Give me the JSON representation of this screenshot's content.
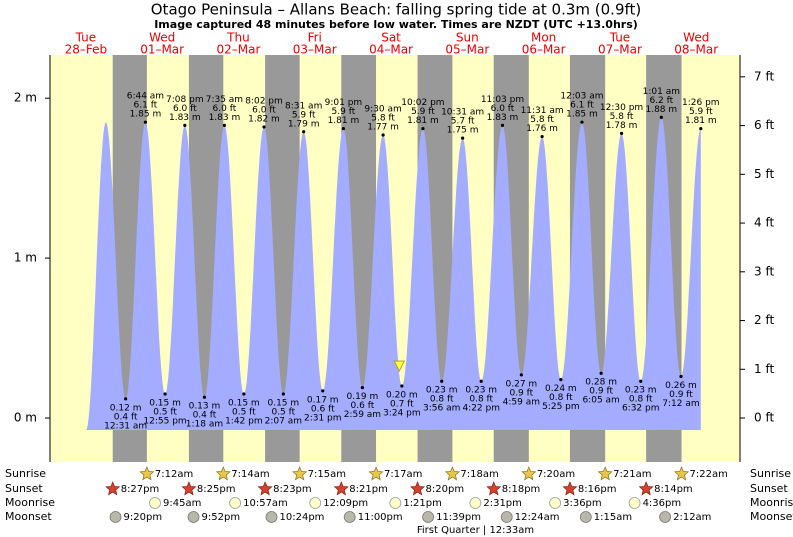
{
  "chart_data": {
    "type": "tide",
    "title": "Otago Peninsula – Allans Beach: falling  spring tide at 0.3m (0.9ft)",
    "subtitle": "Image captured 48 minutes before low water. Times are NZDT (UTC +13.0hrs)",
    "ylim": [
      -0.275,
      2.27
    ],
    "yticks": [
      {
        "value": 0,
        "label": "0 m"
      },
      {
        "value": 1,
        "label": "1 m"
      },
      {
        "value": 2,
        "label": "2 m"
      }
    ],
    "y2lim": [
      -0.902,
      7.448
    ],
    "y2ticks": [
      {
        "value": 0,
        "label": "0 ft"
      },
      {
        "value": 1,
        "label": "1 ft"
      },
      {
        "value": 2,
        "label": "2 ft"
      },
      {
        "value": 3,
        "label": "3 ft"
      },
      {
        "value": 4,
        "label": "4 ft"
      },
      {
        "value": 5,
        "label": "5 ft"
      },
      {
        "value": 6,
        "label": "6 ft"
      },
      {
        "value": 7,
        "label": "7 ft"
      }
    ],
    "row_labels": {
      "sunrise": "Sunrise",
      "sunset": "Sunset",
      "moonrise": "Moonrise",
      "moonset": "Moonset"
    },
    "colors": {
      "day": "#ffffc4",
      "night": "#999999",
      "water": "#a3acff",
      "date": "#ee0000"
    },
    "days": [
      {
        "name": "Tue",
        "date": "28–Feb",
        "tides": [],
        "sunset": "8:27pm",
        "moonset": "9:20pm"
      },
      {
        "name": "Wed",
        "date": "01–Mar",
        "tides": [
          {
            "time": "12:31 am",
            "m": 0.12,
            "m_label": "0.12 m",
            "ft": 0.4,
            "ft_label": "0.4 ft"
          },
          {
            "time": "6:44 am",
            "m": 1.85,
            "m_label": "1.85 m",
            "ft": 6.1,
            "ft_label": "6.1 ft"
          },
          {
            "time": "12:55 pm",
            "m": 0.15,
            "m_label": "0.15 m",
            "ft": 0.5,
            "ft_label": "0.5 ft"
          },
          {
            "time": "7:08 pm",
            "m": 1.83,
            "m_label": "1.83 m",
            "ft": 6.0,
            "ft_label": "6.0 ft"
          }
        ],
        "sunrise": "7:12am",
        "sunset": "8:25pm",
        "moonrise": "9:45am",
        "moonset": "9:52pm"
      },
      {
        "name": "Thu",
        "date": "02–Mar",
        "tides": [
          {
            "time": "1:18 am",
            "m": 0.13,
            "m_label": "0.13 m",
            "ft": 0.4,
            "ft_label": "0.4 ft"
          },
          {
            "time": "7:35 am",
            "m": 1.83,
            "m_label": "1.83 m",
            "ft": 6.0,
            "ft_label": "6.0 ft"
          },
          {
            "time": "1:42 pm",
            "m": 0.15,
            "m_label": "0.15 m",
            "ft": 0.5,
            "ft_label": "0.5 ft"
          },
          {
            "time": "8:02 pm",
            "m": 1.82,
            "m_label": "1.82 m",
            "ft": 6.0,
            "ft_label": "6.0 ft"
          }
        ],
        "sunrise": "7:14am",
        "sunset": "8:23pm",
        "moonrise": "10:57am",
        "moonset": "10:24pm"
      },
      {
        "name": "Fri",
        "date": "03–Mar",
        "tides": [
          {
            "time": "2:07 am",
            "m": 0.15,
            "m_label": "0.15 m",
            "ft": 0.5,
            "ft_label": "0.5 ft"
          },
          {
            "time": "8:31 am",
            "m": 1.79,
            "m_label": "1.79 m",
            "ft": 5.9,
            "ft_label": "5.9 ft"
          },
          {
            "time": "2:31 pm",
            "m": 0.17,
            "m_label": "0.17 m",
            "ft": 0.6,
            "ft_label": "0.6 ft"
          },
          {
            "time": "9:01 pm",
            "m": 1.81,
            "m_label": "1.81 m",
            "ft": 5.9,
            "ft_label": "5.9 ft"
          }
        ],
        "sunrise": "7:15am",
        "sunset": "8:21pm",
        "moonrise": "12:09pm",
        "moonset": "11:00pm"
      },
      {
        "name": "Sat",
        "date": "04–Mar",
        "tides": [
          {
            "time": "2:59 am",
            "m": 0.19,
            "m_label": "0.19 m",
            "ft": 0.6,
            "ft_label": "0.6 ft"
          },
          {
            "time": "9:30 am",
            "m": 1.77,
            "m_label": "1.77 m",
            "ft": 5.8,
            "ft_label": "5.8 ft"
          },
          {
            "time": "3:24 pm",
            "m": 0.2,
            "m_label": "0.20 m",
            "ft": 0.7,
            "ft_label": "0.7 ft",
            "now": {
              "level": 0.3,
              "minutes_before": 48
            }
          },
          {
            "time": "10:02 pm",
            "m": 1.81,
            "m_label": "1.81 m",
            "ft": 5.9,
            "ft_label": "5.9 ft"
          }
        ],
        "sunrise": "7:17am",
        "sunset": "8:20pm",
        "moonrise": "1:21pm",
        "moonset": "11:39pm"
      },
      {
        "name": "Sun",
        "date": "05–Mar",
        "tides": [
          {
            "time": "3:56 am",
            "m": 0.23,
            "m_label": "0.23 m",
            "ft": 0.8,
            "ft_label": "0.8 ft"
          },
          {
            "time": "10:31 am",
            "m": 1.75,
            "m_label": "1.75 m",
            "ft": 5.7,
            "ft_label": "5.7 ft"
          },
          {
            "time": "4:22 pm",
            "m": 0.23,
            "m_label": "0.23 m",
            "ft": 0.8,
            "ft_label": "0.8 ft"
          },
          {
            "time": "11:03 pm",
            "m": 1.83,
            "m_label": "1.83 m",
            "ft": 6.0,
            "ft_label": "6.0 ft"
          }
        ],
        "sunrise": "7:18am",
        "sunset": "8:18pm",
        "moonrise": "2:31pm"
      },
      {
        "name": "Mon",
        "date": "06–Mar",
        "tides": [
          {
            "time": "4:59 am",
            "m": 0.27,
            "m_label": "0.27 m",
            "ft": 0.9,
            "ft_label": "0.9 ft"
          },
          {
            "time": "11:31 am",
            "m": 1.76,
            "m_label": "1.76 m",
            "ft": 5.8,
            "ft_label": "5.8 ft"
          },
          {
            "time": "5:25 pm",
            "m": 0.24,
            "m_label": "0.24 m",
            "ft": 0.8,
            "ft_label": "0.8 ft"
          }
        ],
        "sunrise": "7:20am",
        "sunset": "8:16pm",
        "moonrise": "3:36pm",
        "moonset": "12:24am",
        "moon_phase": "First Quarter | 12:33am"
      },
      {
        "name": "Tue",
        "date": "07–Mar",
        "tides": [
          {
            "time": "12:03 am",
            "m": 1.85,
            "m_label": "1.85 m",
            "ft": 6.1,
            "ft_label": "6.1 ft"
          },
          {
            "time": "6:05 am",
            "m": 0.28,
            "m_label": "0.28 m",
            "ft": 0.9,
            "ft_label": "0.9 ft"
          },
          {
            "time": "12:30 pm",
            "m": 1.78,
            "m_label": "1.78 m",
            "ft": 5.8,
            "ft_label": "5.8 ft"
          },
          {
            "time": "6:32 pm",
            "m": 0.23,
            "m_label": "0.23 m",
            "ft": 0.8,
            "ft_label": "0.8 ft"
          }
        ],
        "sunrise": "7:21am",
        "sunset": "8:14pm",
        "moonrise": "4:36pm",
        "moonset": "1:15am"
      },
      {
        "name": "Wed",
        "date": "08–Mar",
        "tides": [
          {
            "time": "1:01 am",
            "m": 1.88,
            "m_label": "1.88 m",
            "ft": 6.2,
            "ft_label": "6.2 ft"
          },
          {
            "time": "7:12 am",
            "m": 0.26,
            "m_label": "0.26 m",
            "ft": 0.9,
            "ft_label": "0.9 ft"
          },
          {
            "time": "1:26 pm",
            "m": 1.81,
            "m_label": "1.81 m",
            "ft": 5.9,
            "ft_label": "5.9 ft"
          }
        ],
        "sunrise": "7:22am",
        "moonset": "2:12am"
      }
    ]
  }
}
